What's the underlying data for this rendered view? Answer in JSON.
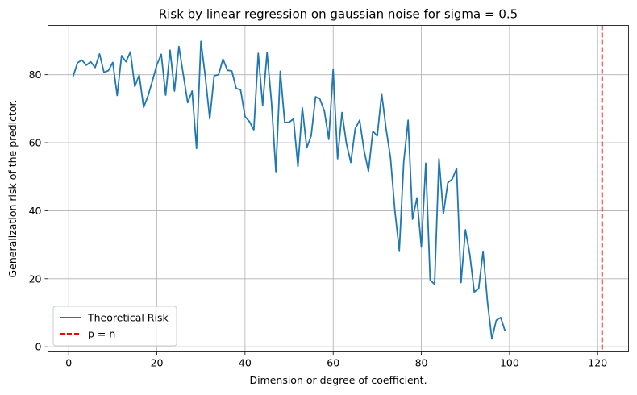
{
  "chart_data": {
    "type": "line",
    "title": "Risk by linear regression on gaussian noise for sigma = 0.5",
    "xlabel": "Dimension or degree of coefficient.",
    "ylabel": "Generalization risk of the predictor.",
    "xlim": [
      -4.7,
      127
    ],
    "ylim": [
      -1.5,
      94.5
    ],
    "xticks": [
      0,
      20,
      40,
      60,
      80,
      100,
      120
    ],
    "yticks": [
      0,
      20,
      40,
      60,
      80
    ],
    "grid": true,
    "legend_position": "lower-left",
    "series": [
      {
        "name": "Theoretical Risk",
        "color": "#1f77b4",
        "style": "solid",
        "x": [
          1,
          2,
          3,
          4,
          5,
          6,
          7,
          8,
          9,
          10,
          11,
          12,
          13,
          14,
          15,
          16,
          17,
          18,
          19,
          20,
          21,
          22,
          23,
          24,
          25,
          26,
          27,
          28,
          29,
          30,
          31,
          32,
          33,
          34,
          35,
          36,
          37,
          38,
          39,
          40,
          41,
          42,
          43,
          44,
          45,
          46,
          47,
          48,
          49,
          50,
          51,
          52,
          53,
          54,
          55,
          56,
          57,
          58,
          59,
          60,
          61,
          62,
          63,
          64,
          65,
          66,
          67,
          68,
          69,
          70,
          71,
          72,
          73,
          74,
          75,
          76,
          77,
          78,
          79,
          80,
          81,
          82,
          83,
          84,
          85,
          86,
          87,
          88,
          89,
          90,
          91,
          92,
          93,
          94,
          95,
          96,
          97,
          98,
          99
        ],
        "y": [
          79.5,
          83.5,
          84.3,
          82.8,
          83.8,
          82.1,
          86.1,
          80.7,
          81.2,
          83.6,
          73.9,
          85.6,
          83.8,
          86.7,
          76.5,
          79.9,
          70.4,
          73.8,
          78.2,
          82.9,
          86.0,
          74.0,
          87.2,
          75.2,
          88.3,
          80.0,
          71.8,
          75.2,
          58.3,
          89.8,
          79.4,
          67.0,
          79.7,
          80.0,
          84.6,
          81.3,
          81.1,
          76.0,
          75.5,
          67.7,
          66.2,
          63.8,
          86.3,
          71.0,
          86.5,
          72.0,
          51.5,
          81.0,
          66.0,
          66.0,
          67.0,
          53.0,
          70.3,
          58.5,
          62.0,
          73.5,
          72.8,
          69.3,
          61.0,
          81.5,
          55.3,
          68.9,
          59.8,
          54.2,
          64.1,
          66.6,
          57.8,
          51.6,
          63.4,
          62.0,
          74.4,
          64.1,
          55.6,
          40.0,
          28.3,
          54.3,
          66.6,
          37.5,
          43.8,
          29.3,
          54.0,
          19.6,
          18.4,
          55.3,
          39.1,
          48.2,
          49.3,
          52.4,
          18.9,
          34.4,
          27.1,
          16.1,
          17.1,
          28.1,
          13.2,
          2.3,
          7.8,
          8.6,
          4.6
        ]
      },
      {
        "name": "p = n",
        "color": "#ff0000",
        "style": "dashed",
        "x_constant": 121
      }
    ]
  }
}
